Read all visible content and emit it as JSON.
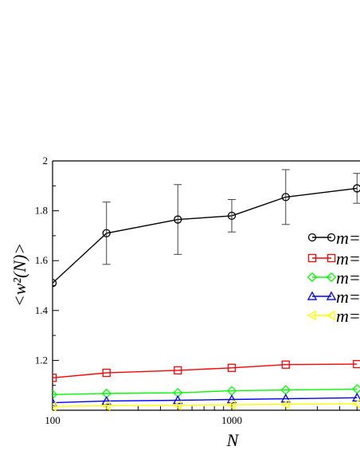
{
  "chart_data": {
    "type": "line",
    "xscale": "log",
    "xlim": [
      100,
      5000
    ],
    "ylim": [
      1.0,
      2.0
    ],
    "xlabel": "N",
    "ylabel": "<w²(N)>",
    "x_tick_labels": [
      {
        "value": 100,
        "label": "100"
      },
      {
        "value": 1000,
        "label": "1000"
      }
    ],
    "y_tick_labels": [
      {
        "value": 1.2,
        "label": "1.2"
      },
      {
        "value": 1.4,
        "label": "1.4"
      },
      {
        "value": 1.6,
        "label": "1.6"
      },
      {
        "value": 1.8,
        "label": "1.8"
      },
      {
        "value": 2.0,
        "label": "2"
      }
    ],
    "legend_placement": "right",
    "series": [
      {
        "name": "m=",
        "color": "#000000",
        "marker": "circle",
        "x": [
          100,
          200,
          500,
          1000,
          2000,
          5000
        ],
        "y": [
          1.51,
          1.71,
          1.765,
          1.78,
          1.855,
          1.89
        ],
        "yerr": [
          [
            1.51,
            1.51
          ],
          [
            1.585,
            1.835
          ],
          [
            1.625,
            1.905
          ],
          [
            1.715,
            1.845
          ],
          [
            1.745,
            1.965
          ],
          [
            1.83,
            1.95
          ]
        ]
      },
      {
        "name": "m=",
        "color": "#ff0000",
        "marker": "square",
        "x": [
          100,
          200,
          500,
          1000,
          2000,
          5000
        ],
        "y": [
          1.13,
          1.15,
          1.16,
          1.17,
          1.183,
          1.185
        ]
      },
      {
        "name": "m=",
        "color": "#00ff00",
        "marker": "diamond",
        "x": [
          100,
          200,
          500,
          1000,
          2000,
          5000
        ],
        "y": [
          1.063,
          1.067,
          1.07,
          1.078,
          1.081,
          1.085
        ]
      },
      {
        "name": "m=",
        "color": "#0000ff",
        "marker": "triangle-up",
        "x": [
          100,
          200,
          500,
          1000,
          2000,
          5000
        ],
        "y": [
          1.03,
          1.037,
          1.04,
          1.043,
          1.046,
          1.05
        ]
      },
      {
        "name": "m=",
        "color": "#ffff00",
        "marker": "triangle-left",
        "x": [
          100,
          200,
          500,
          1000,
          2000,
          5000
        ],
        "y": [
          1.015,
          1.018,
          1.02,
          1.022,
          1.024,
          1.026
        ]
      }
    ]
  }
}
